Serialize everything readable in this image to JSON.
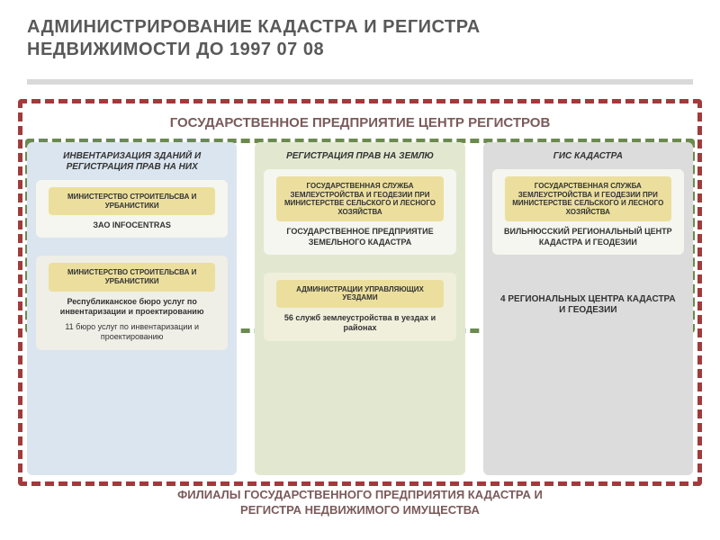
{
  "title_line1": "АДМИНИСТРИРОВАНИЕ КАДАСТРА И РЕГИСТРА",
  "title_line2": "НЕДВИЖИМОСТИ ДО 1997 07 08",
  "center_header": "ГОСУДАРСТВЕННОЕ ПРЕДПРИЯТИЕ ЦЕНТР РЕГИСТРОВ",
  "footer_line1": "ФИЛИАЛЫ ГОСУДАРСТВЕННОГО ПРЕДПРИЯТИЯ КАДАСТРА И",
  "footer_line2": "РЕГИСТРА НЕДВИЖИМОГО ИМУЩЕСТВА",
  "colors": {
    "title_grey": "#595959",
    "divider": "#d9d9d9",
    "header_brown": "#7b5a5a",
    "dashed_red": "#a13b3b",
    "dashed_green": "#6b8a4f",
    "col1_bg": "#dbe5ef",
    "col2_bg": "#e2e8cf",
    "col3_bg": "#dcdcdc",
    "inner_top_bg": "#f4f6ef",
    "yellow_sub": "#ecdf9e",
    "inner_bottom_col1": "#efeee7",
    "inner_bottom_col2": "#f0efdc"
  },
  "col1": {
    "title": "ИНВЕНТАРИЗАЦИЯ ЗДАНИЙ И РЕГИСТРАЦИЯ ПРАВ НА НИХ",
    "top_block": {
      "sub": "МИНИСТЕРСТВО СТРОИТЕЛЬСВА И УРБАНИСТИКИ",
      "cap": "ЗАО INFOCENTRAS"
    },
    "bottom_block": {
      "sub": "МИНИСТЕРСТВО СТРОИТЕЛЬСВА И УРБАНИСТИКИ",
      "cap1": "Республиканское бюро услуг по инвентаризации и проектированию",
      "cap2": "11 бюро услуг по инвентаризации и проектированию"
    }
  },
  "col2": {
    "title": "РЕГИСТРАЦИЯ ПРАВ НА ЗЕМЛЮ",
    "top_block": {
      "sub": "ГОСУДАРСТВЕННАЯ СЛУЖБА ЗЕМЛЕУСТРОЙСТВА И ГЕОДЕЗИИ ПРИ МИНИСТЕРСТВЕ СЕЛЬСКОГО И ЛЕСНОГО ХОЗЯЙСТВА",
      "cap": "ГОСУДАРСТВЕННОЕ ПРЕДПРИЯТИЕ ЗЕМЕЛЬНОГО КАДАСТРА"
    },
    "bottom_block": {
      "sub": "АДМИНИСТРАЦИИ УПРАВЛЯЮЩИХ УЕЗДАМИ",
      "cap": "56 служб землеустройства в уездах и районах"
    }
  },
  "col3": {
    "title": "ГИС КАДАСТРА",
    "top_block": {
      "sub": "ГОСУДАРСТВЕННАЯ СЛУЖБА ЗЕМЛЕУСТРОЙСТВА И ГЕОДЕЗИИ ПРИ МИНИСТЕРСТВЕ СЕЛЬСКОГО И ЛЕСНОГО ХОЗЯЙСТВА",
      "cap": "ВИЛЬНЮССКИЙ РЕГИОНАЛЬНЫЙ ЦЕНТР КАДАСТРА И ГЕОДЕЗИИ"
    },
    "bottom_block": {
      "cap": "4 РЕГИОНАЛЬНЫХ ЦЕНТРА КАДАСТРА И ГЕОДЕЗИИ"
    }
  }
}
